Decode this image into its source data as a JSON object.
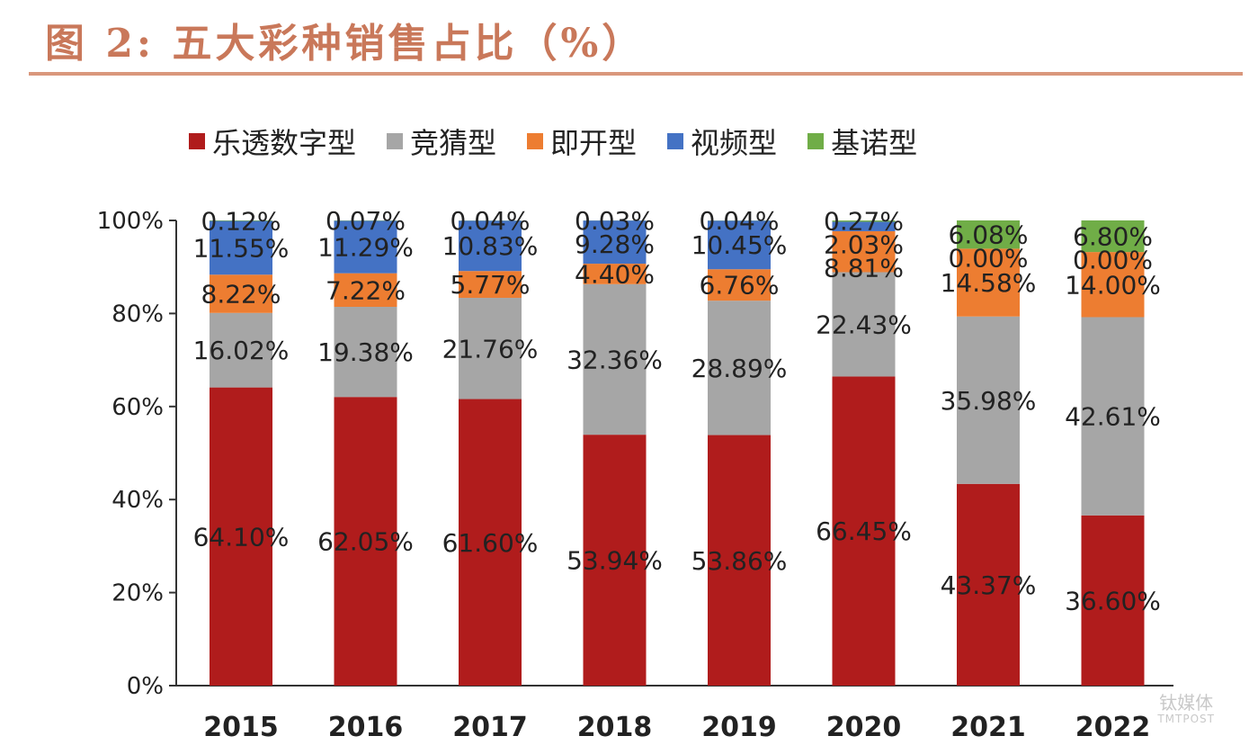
{
  "chart_data": {
    "type": "bar",
    "stacked": true,
    "title": "图 2: 五大彩种销售占比（%）",
    "xlabel": "",
    "ylabel": "",
    "ylim": [
      0,
      100
    ],
    "yticks": [
      "0%",
      "20%",
      "40%",
      "60%",
      "80%",
      "100%"
    ],
    "grid": false,
    "legend_position": "top",
    "categories": [
      "2015",
      "2016",
      "2017",
      "2018",
      "2019",
      "2020",
      "2021",
      "2022"
    ],
    "series": [
      {
        "name": "乐透数字型",
        "color": "#b01c1c",
        "values": [
          64.1,
          62.05,
          61.6,
          53.94,
          53.86,
          66.45,
          43.37,
          36.6
        ]
      },
      {
        "name": "竞猜型",
        "color": "#a6a6a6",
        "values": [
          16.02,
          19.38,
          21.76,
          32.36,
          28.89,
          22.43,
          35.98,
          42.61
        ]
      },
      {
        "name": "即开型",
        "color": "#ed7d31",
        "values": [
          8.22,
          7.22,
          5.77,
          4.4,
          6.76,
          8.81,
          14.58,
          14.0
        ]
      },
      {
        "name": "视频型",
        "color": "#4472c4",
        "values": [
          11.55,
          11.29,
          10.83,
          9.28,
          10.45,
          2.03,
          0.0,
          0.0
        ]
      },
      {
        "name": "基诺型",
        "color": "#70ad47",
        "values": [
          0.12,
          0.07,
          0.04,
          0.03,
          0.04,
          0.27,
          6.08,
          6.8
        ]
      }
    ]
  },
  "watermark": {
    "text": "钛媒体",
    "sub": "TMTPOST"
  }
}
